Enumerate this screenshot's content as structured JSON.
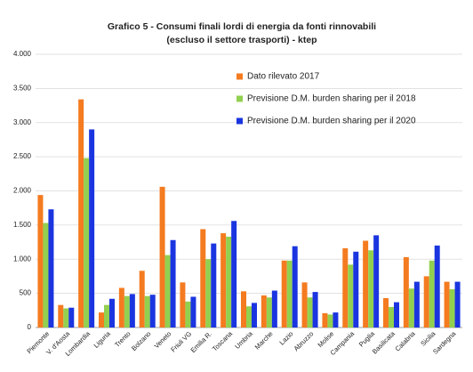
{
  "chart_data": {
    "type": "bar",
    "title": "Grafico 5 - Consumi finali lordi di energia da fonti rinnovabili",
    "subtitle": "(escluso il settore trasporti) - ktep",
    "categories": [
      "Piemonte",
      "V. d'Aosta",
      "Lombardia",
      "Liguria",
      "Trento",
      "Bolzano",
      "Veneto",
      "Friuli VG",
      "Emilia R.",
      "Toscana",
      "Umbria",
      "Marche",
      "Lazio",
      "Abruzzo",
      "Molise",
      "Campania",
      "Puglia",
      "Basilicata",
      "Calabria",
      "Sicilia",
      "Sardegna"
    ],
    "series": [
      {
        "name": "Dato rilevato 2017",
        "color": "#f47b20",
        "values": [
          1940,
          330,
          3340,
          220,
          580,
          830,
          2060,
          660,
          1440,
          1380,
          530,
          470,
          980,
          660,
          210,
          1160,
          1270,
          430,
          1030,
          750,
          670
        ]
      },
      {
        "name": "Previsione D.M. burden sharing per il 2018",
        "color": "#92d050",
        "values": [
          1530,
          280,
          2480,
          330,
          460,
          460,
          1060,
          380,
          1000,
          1330,
          310,
          440,
          980,
          440,
          190,
          920,
          1130,
          300,
          570,
          980,
          560
        ]
      },
      {
        "name": "Previsione D.M. burden sharing per il 2020",
        "color": "#1a35e0",
        "values": [
          1730,
          290,
          2900,
          420,
          490,
          480,
          1280,
          450,
          1230,
          1560,
          360,
          540,
          1190,
          520,
          220,
          1110,
          1350,
          370,
          670,
          1200,
          670
        ]
      }
    ],
    "ylim": [
      0,
      4000
    ],
    "yticks": [
      0,
      500,
      {
        "value": 1000,
        "label": "1.000"
      },
      {
        "value": 1500,
        "label": "1.500"
      },
      {
        "value": 2000,
        "label": "2.000"
      },
      {
        "value": 2500,
        "label": "2.500"
      },
      {
        "value": 3000,
        "label": "3.000"
      },
      {
        "value": 3500,
        "label": "3.500"
      },
      {
        "value": 4000,
        "label": "4.000"
      }
    ],
    "grid": true
  }
}
